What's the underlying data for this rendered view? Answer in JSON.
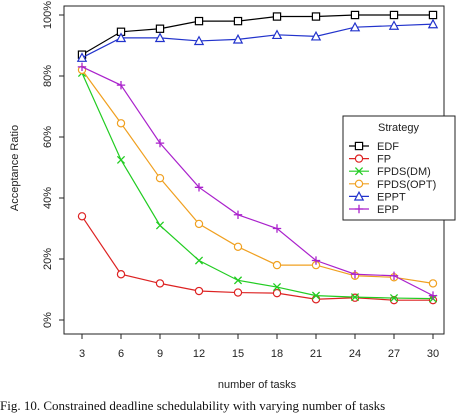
{
  "caption": "Fig. 10. Constrained deadline schedulability with varying number of tasks",
  "chart_data": {
    "type": "line",
    "x": [
      3,
      6,
      9,
      12,
      15,
      18,
      21,
      24,
      27,
      30
    ],
    "xlabel": "number of tasks",
    "ylabel": "Acceptance Ratio",
    "xlim": [
      3,
      30
    ],
    "ylim": [
      0,
      100
    ],
    "y_unit": "%",
    "xticks": [
      3,
      6,
      9,
      12,
      15,
      18,
      21,
      24,
      27,
      30
    ],
    "yticks": [
      0,
      20,
      40,
      60,
      80,
      100
    ],
    "ytick_labels": [
      "0%",
      "20%",
      "40%",
      "60%",
      "80%",
      "100%"
    ],
    "grid": false,
    "legend": {
      "title": "Strategy",
      "placement": "right"
    },
    "series": [
      {
        "name": "EDF",
        "marker": "square",
        "color": "#000000",
        "values": [
          87,
          94.5,
          95.5,
          98,
          98,
          99.5,
          99.5,
          100,
          100,
          100
        ]
      },
      {
        "name": "FP",
        "marker": "circle",
        "color": "#dd2222",
        "values": [
          34,
          15,
          12,
          9.5,
          9,
          8.8,
          6.8,
          7.3,
          6.5,
          6.5
        ]
      },
      {
        "name": "FPDS(DM)",
        "marker": "cross",
        "color": "#22cc22",
        "values": [
          81,
          52.5,
          31,
          19.5,
          13,
          10.8,
          8,
          7.5,
          7.2,
          7
        ]
      },
      {
        "name": "FPDS(OPT)",
        "marker": "circle",
        "color": "#f0a020",
        "values": [
          82,
          64.5,
          46.5,
          31.5,
          24,
          18,
          18,
          14.5,
          14,
          12
        ]
      },
      {
        "name": "EPPT",
        "marker": "triangle",
        "color": "#2233cc",
        "values": [
          86,
          92.5,
          92.5,
          91.5,
          92,
          93.5,
          93,
          96,
          96.5,
          97
        ]
      },
      {
        "name": "EPP",
        "marker": "plus",
        "color": "#aa22cc",
        "values": [
          83,
          77,
          58,
          43.5,
          34.5,
          30,
          19.5,
          15,
          14.5,
          8
        ]
      }
    ]
  }
}
